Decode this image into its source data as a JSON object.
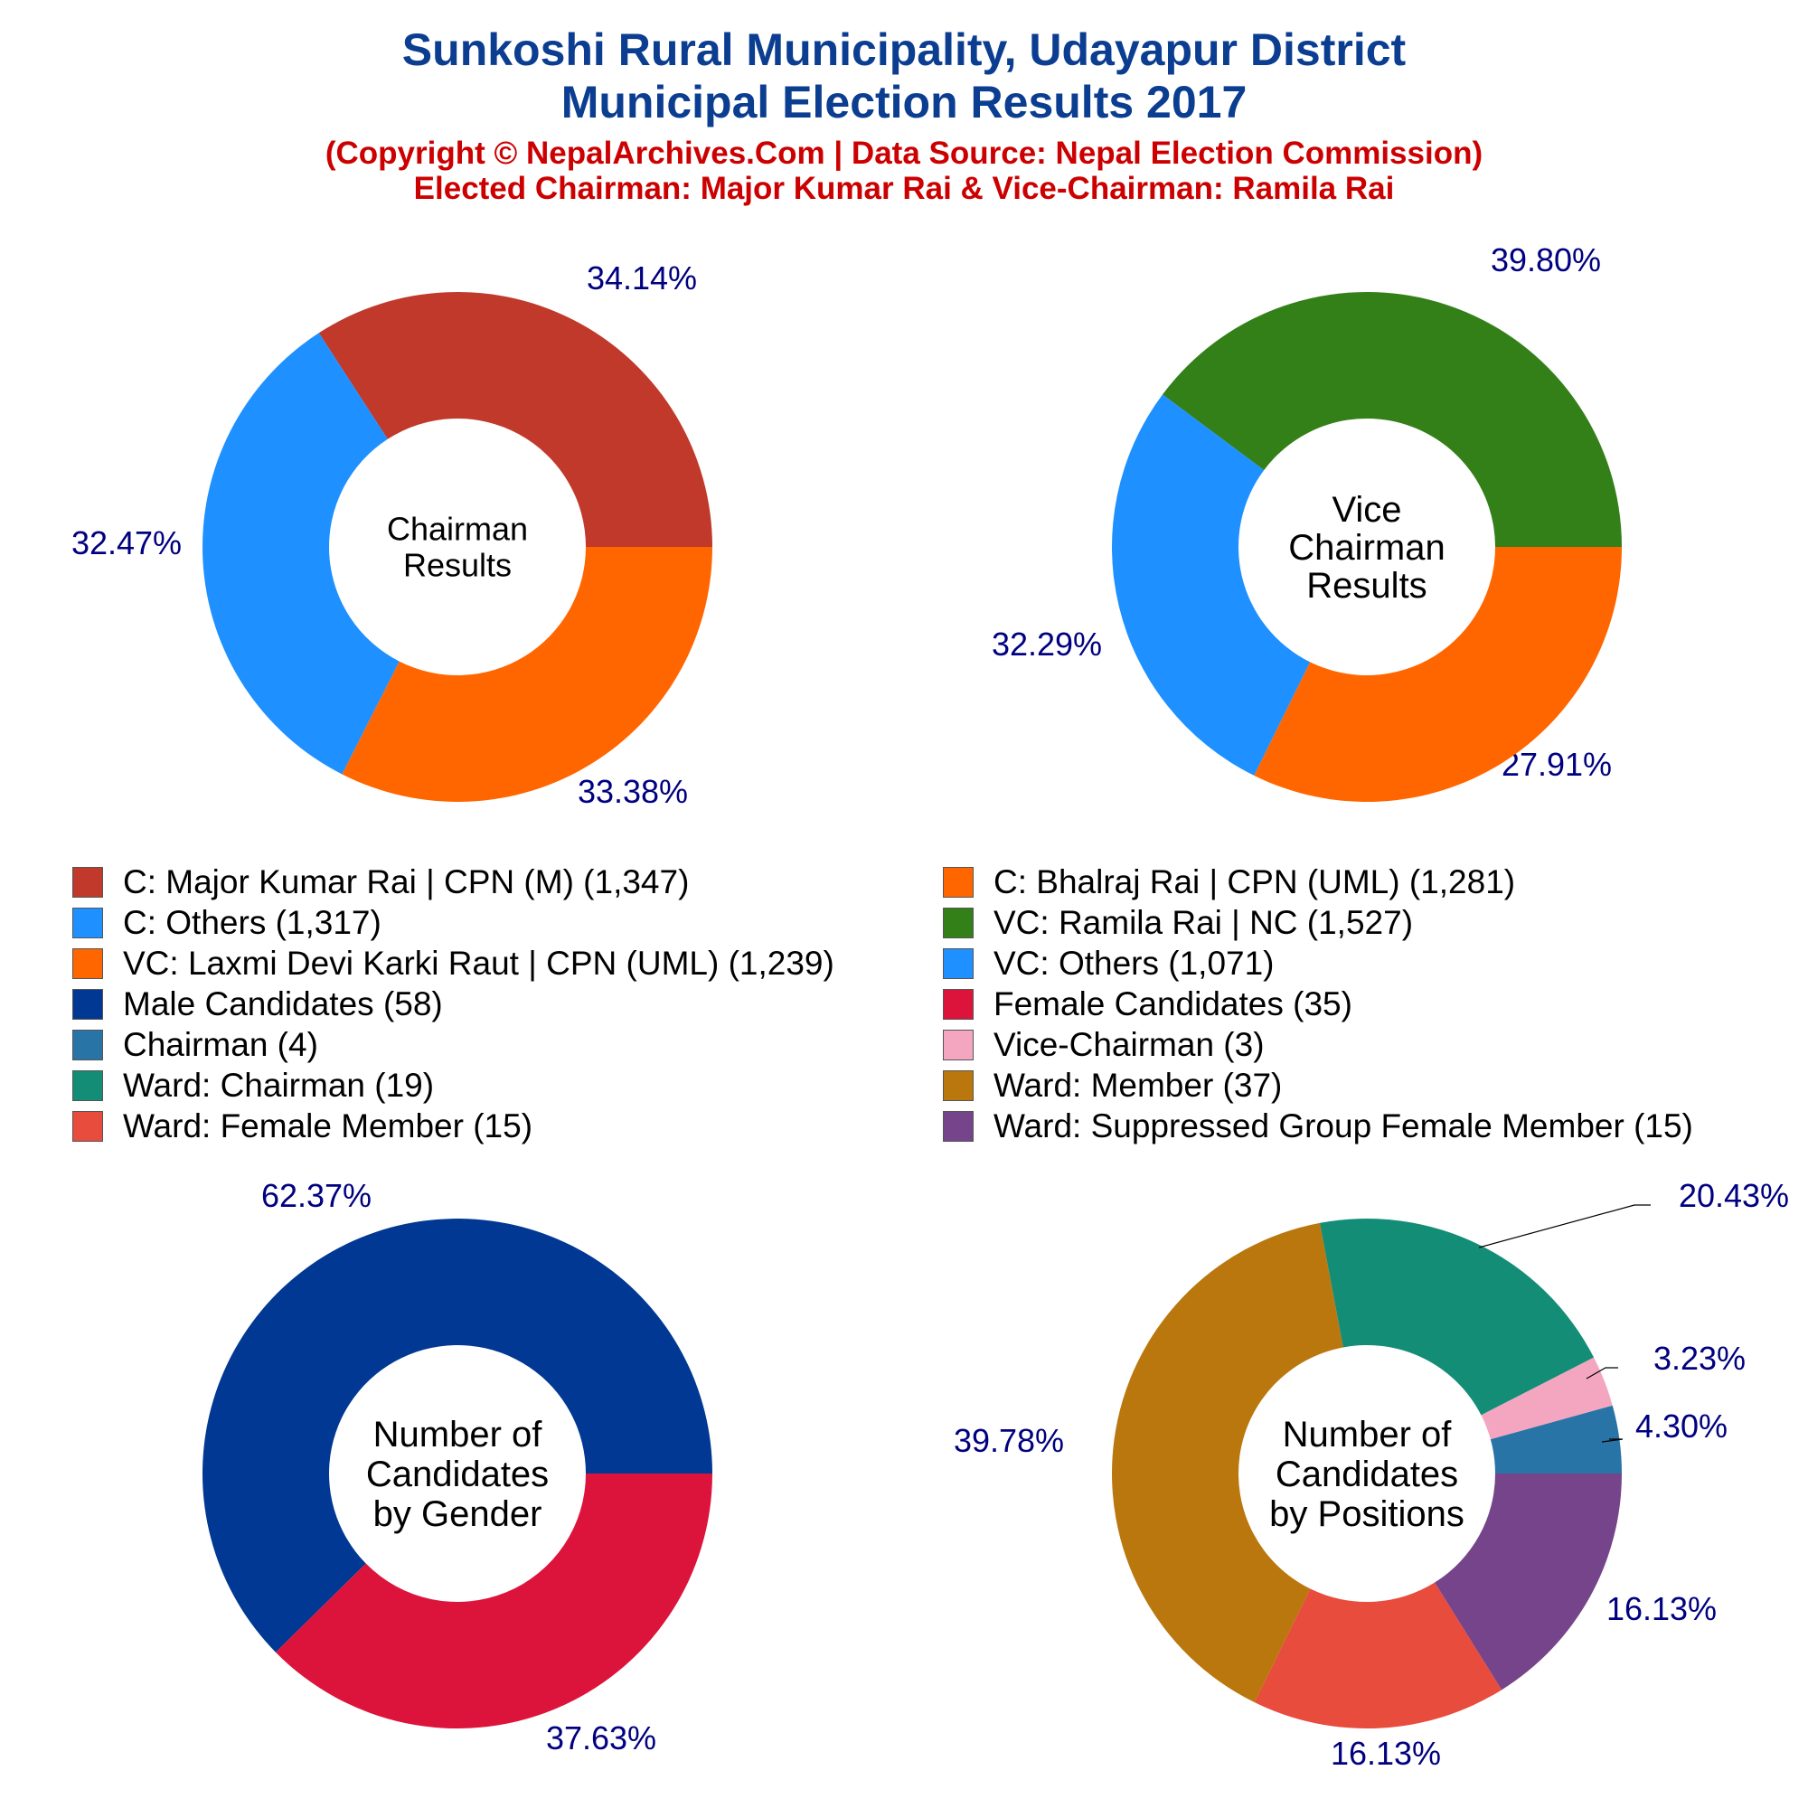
{
  "title_line1": "Sunkoshi Rural Municipality, Udayapur District",
  "title_line2": "Municipal Election Results 2017",
  "subtitle_line1": "(Copyright © NepalArchives.Com | Data Source: Nepal Election Commission)",
  "subtitle_line2": "Elected Chairman: Major Kumar Rai & Vice-Chairman: Ramila Rai",
  "colors": {
    "title": "#0b3d91",
    "subtitle": "#cc0000",
    "pct_label": "#000080"
  },
  "legend": [
    {
      "label": "C: Major Kumar Rai | CPN (M) (1,347)",
      "color": "#c0392b"
    },
    {
      "label": "C: Bhalraj Rai | CPN (UML) (1,281)",
      "color": "#ff6600"
    },
    {
      "label": "C: Others (1,317)",
      "color": "#1e90ff"
    },
    {
      "label": "VC: Ramila Rai | NC (1,527)",
      "color": "#338019"
    },
    {
      "label": "VC: Laxmi Devi Karki Raut | CPN (UML) (1,239)",
      "color": "#ff6600"
    },
    {
      "label": "VC: Others (1,071)",
      "color": "#1e90ff"
    },
    {
      "label": "Male Candidates (58)",
      "color": "#003893"
    },
    {
      "label": "Female Candidates (35)",
      "color": "#dc143c"
    },
    {
      "label": "Chairman (4)",
      "color": "#2874a6"
    },
    {
      "label": "Vice-Chairman (3)",
      "color": "#f4a6c0"
    },
    {
      "label": "Ward: Chairman (19)",
      "color": "#138d75"
    },
    {
      "label": "Ward: Member (37)",
      "color": "#b9770e"
    },
    {
      "label": "Ward: Female Member (15)",
      "color": "#e74c3c"
    },
    {
      "label": "Ward: Suppressed Group Female Member (15)",
      "color": "#76448a"
    }
  ],
  "chart_data": [
    {
      "type": "pie",
      "center_label": [
        "Chairman",
        "Results"
      ],
      "slices": [
        {
          "name": "C: Major Kumar Rai | CPN (M)",
          "value": 1347,
          "percent_label": "34.14%",
          "color": "#c0392b"
        },
        {
          "name": "C: Others",
          "value": 1317,
          "percent_label": "33.38%",
          "color": "#1e90ff"
        },
        {
          "name": "C: Bhalraj Rai | CPN (UML)",
          "value": 1281,
          "percent_label": "32.47%",
          "color": "#ff6600"
        }
      ]
    },
    {
      "type": "pie",
      "center_label": [
        "Vice",
        "Chairman",
        "Results"
      ],
      "slices": [
        {
          "name": "VC: Ramila Rai | NC",
          "value": 1527,
          "percent_label": "39.80%",
          "color": "#338019"
        },
        {
          "name": "VC: Others",
          "value": 1071,
          "percent_label": "27.91%",
          "color": "#1e90ff"
        },
        {
          "name": "VC: Laxmi Devi Karki Raut | CPN (UML)",
          "value": 1239,
          "percent_label": "32.29%",
          "color": "#ff6600"
        }
      ]
    },
    {
      "type": "pie",
      "center_label": [
        "Number of",
        "Candidates",
        "by Gender"
      ],
      "slices": [
        {
          "name": "Male Candidates",
          "value": 58,
          "percent_label": "62.37%",
          "color": "#003893"
        },
        {
          "name": "Female Candidates",
          "value": 35,
          "percent_label": "37.63%",
          "color": "#dc143c"
        }
      ]
    },
    {
      "type": "pie",
      "center_label": [
        "Number of",
        "Candidates",
        "by Positions"
      ],
      "slices": [
        {
          "name": "Chairman",
          "value": 4,
          "percent_label": "4.30%",
          "color": "#2874a6"
        },
        {
          "name": "Vice-Chairman",
          "value": 3,
          "percent_label": "3.23%",
          "color": "#f4a6c0"
        },
        {
          "name": "Ward: Chairman",
          "value": 19,
          "percent_label": "20.43%",
          "color": "#138d75"
        },
        {
          "name": "Ward: Member",
          "value": 37,
          "percent_label": "39.78%",
          "color": "#b9770e"
        },
        {
          "name": "Ward: Female Member",
          "value": 15,
          "percent_label": "16.13%",
          "color": "#e74c3c"
        },
        {
          "name": "Ward: Suppressed Group Female Member",
          "value": 15,
          "percent_label": "16.13%",
          "color": "#76448a"
        }
      ]
    }
  ]
}
